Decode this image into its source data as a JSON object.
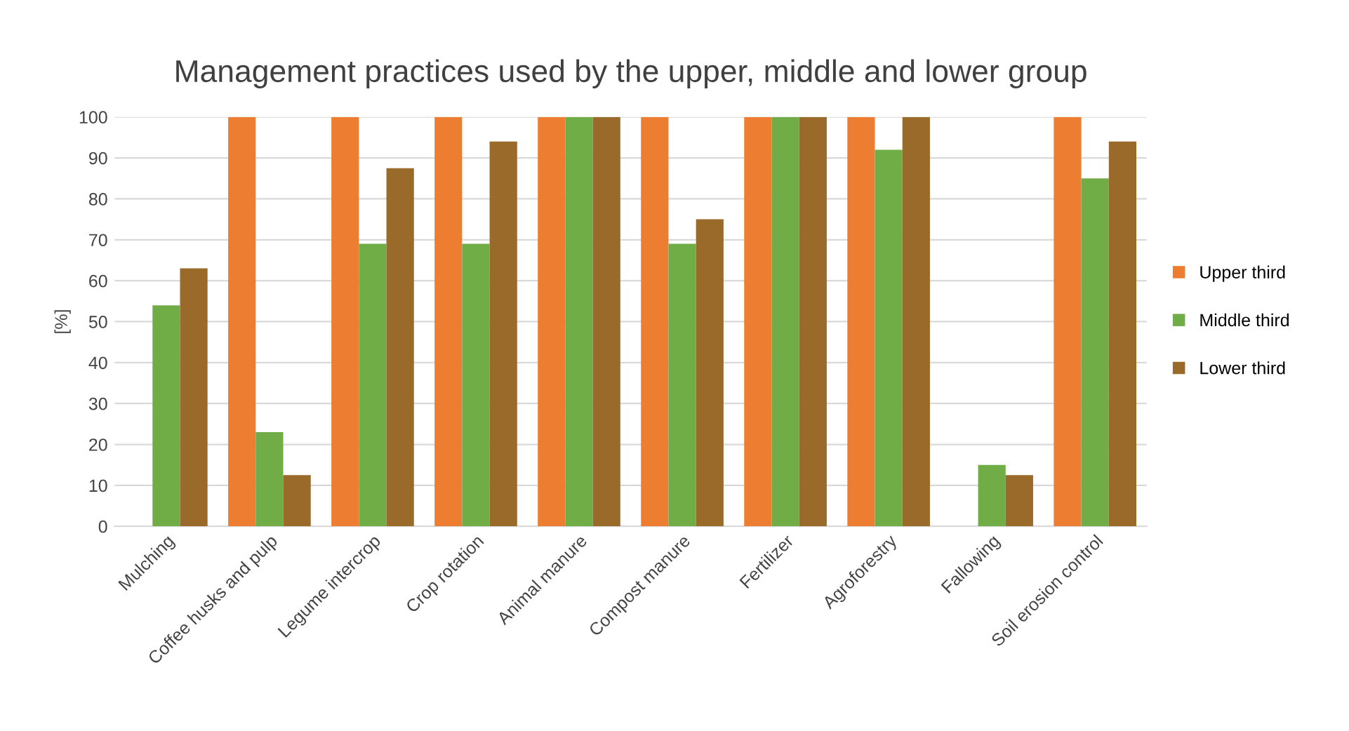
{
  "chart_data": {
    "type": "bar",
    "title": "Management practices used by the upper, middle and lower group",
    "ylabel": "[%]",
    "categories": [
      "Mulching",
      "Coffee husks and pulp",
      "Legume intercrop",
      "Crop rotation",
      "Animal manure",
      "Compost manure",
      "Fertilizer",
      "Agroforestry",
      "Fallowing",
      "Soil erosion control"
    ],
    "series": [
      {
        "name": "Upper third",
        "color": "#ed7d31",
        "values": [
          0,
          100,
          100,
          100,
          100,
          100,
          100,
          100,
          0,
          100
        ]
      },
      {
        "name": "Middle third",
        "color": "#70ad47",
        "values": [
          54,
          23,
          69,
          69,
          100,
          69,
          100,
          92,
          15,
          85
        ]
      },
      {
        "name": "Lower third",
        "color": "#9a6a2a",
        "values": [
          63,
          12.5,
          87.5,
          94,
          100,
          75,
          100,
          100,
          12.5,
          94
        ]
      }
    ],
    "ylim": [
      0,
      100
    ],
    "yticks": [
      0,
      10,
      20,
      30,
      40,
      50,
      60,
      70,
      80,
      90,
      100
    ],
    "grid": "y",
    "legend": "right"
  }
}
